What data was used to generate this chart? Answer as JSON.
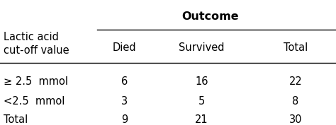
{
  "header_group": "Outcome",
  "col_headers": [
    "Died",
    "Survived",
    "Total"
  ],
  "row_label_header": "Lactic acid\ncut-off value",
  "row_labels": [
    "≥ 2.5  mmol",
    "<2.5  mmol",
    "Total"
  ],
  "data": [
    [
      6,
      16,
      22
    ],
    [
      3,
      5,
      8
    ],
    [
      9,
      21,
      30
    ]
  ],
  "bg_color": "#ffffff",
  "text_color": "#000000",
  "font_size": 10.5,
  "header_font_size": 11.5,
  "figwidth": 4.74,
  "figheight": 1.77,
  "dpi": 100
}
